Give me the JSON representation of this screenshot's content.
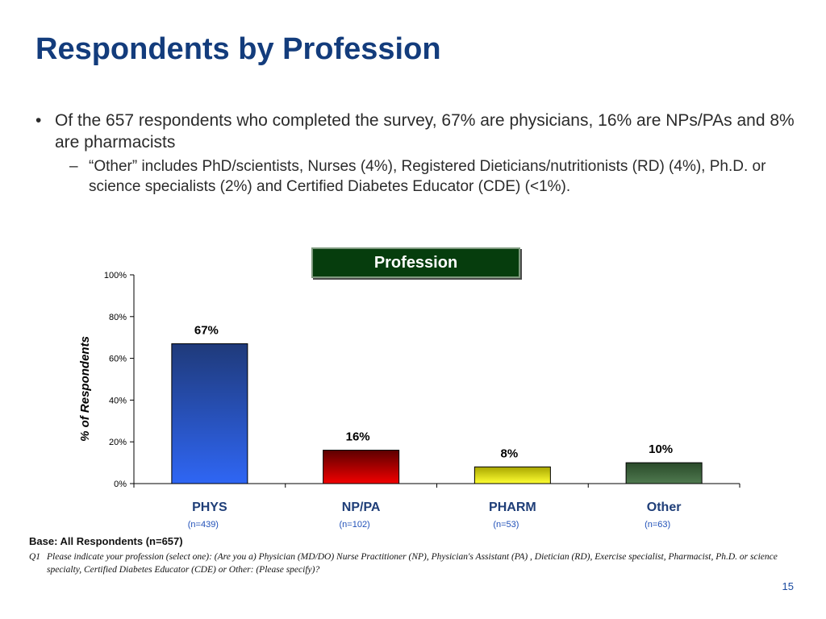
{
  "slide": {
    "title": "Respondents by Profession",
    "bullet_main": "Of the 657 respondents who completed the survey, 67% are physicians, 16% are NPs/PAs and 8% are pharmacists",
    "bullet_sub": "“Other” includes PhD/scientists, Nurses (4%), Registered Dieticians/nutritionists (RD) (4%), Ph.D. or science specialists (2%) and Certified Diabetes Educator (CDE) (<1%).",
    "base_note": "Base: All Respondents (n=657)",
    "question_number": "Q1",
    "question_text": "Please indicate your profession (select one):  (Are you a) Physician (MD/DO) Nurse Practitioner (NP), Physician's Assistant (PA) , Dietician (RD), Exercise specialist, Pharmacist, Ph.D. or science specialty, Certified Diabetes Educator (CDE) or Other: (Please specify)?",
    "page_number": "15"
  },
  "chart_data": {
    "type": "bar",
    "title": "Profession",
    "ylabel": "% of Respondents",
    "xlabel": "",
    "ylim": [
      0,
      100
    ],
    "yticks": [
      "0%",
      "20%",
      "40%",
      "60%",
      "80%",
      "100%"
    ],
    "categories": [
      "PHYS",
      "NP/PA",
      "PHARM",
      "Other"
    ],
    "sublabels": [
      "(n=439)",
      "(n=102)",
      "(n=53)",
      "(n=63)"
    ],
    "values": [
      67,
      16,
      8,
      10
    ],
    "value_labels": [
      "67%",
      "16%",
      "8%",
      "10%"
    ],
    "colors": [
      [
        "#1f3a7a",
        "#2f66f4"
      ],
      [
        "#5c0000",
        "#f20000"
      ],
      [
        "#a8a600",
        "#ffff33"
      ],
      [
        "#2a4a2a",
        "#4f7a4f"
      ]
    ],
    "title_bg": "#063d0d",
    "grid": false,
    "legend": "none"
  }
}
